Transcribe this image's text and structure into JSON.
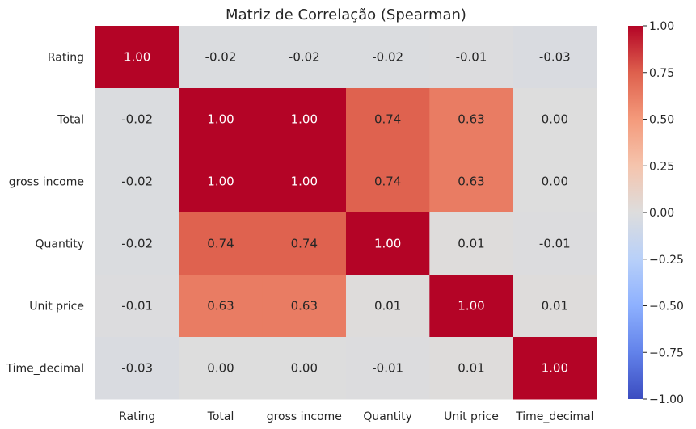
{
  "chart_data": {
    "type": "heatmap",
    "title": "Matriz de Correlação (Spearman)",
    "rows": [
      "Rating",
      "Total",
      "gross income",
      "Quantity",
      "Unit price",
      "Time_decimal"
    ],
    "columns": [
      "Rating",
      "Total",
      "gross income",
      "Quantity",
      "Unit price",
      "Time_decimal"
    ],
    "values": [
      [
        1.0,
        -0.02,
        -0.02,
        -0.02,
        -0.01,
        -0.03
      ],
      [
        -0.02,
        1.0,
        1.0,
        0.74,
        0.63,
        0.0
      ],
      [
        -0.02,
        1.0,
        1.0,
        0.74,
        0.63,
        0.0
      ],
      [
        -0.02,
        0.74,
        0.74,
        1.0,
        0.01,
        -0.01
      ],
      [
        -0.01,
        0.63,
        0.63,
        0.01,
        1.0,
        0.01
      ],
      [
        -0.03,
        0.0,
        0.0,
        -0.01,
        0.01,
        1.0
      ]
    ],
    "value_format": "0.00",
    "colormap": "coolwarm",
    "vmin": -1.0,
    "vmax": 1.0,
    "colorbar": {
      "position": "right",
      "ticks": [
        "1.00",
        "0.75",
        "0.50",
        "0.25",
        "0.00",
        "−0.25",
        "−0.50",
        "−0.75",
        "−1.00"
      ]
    },
    "colors": {
      "low": "#3b4cc0",
      "mid": "#dddddd",
      "high": "#b40426"
    }
  }
}
